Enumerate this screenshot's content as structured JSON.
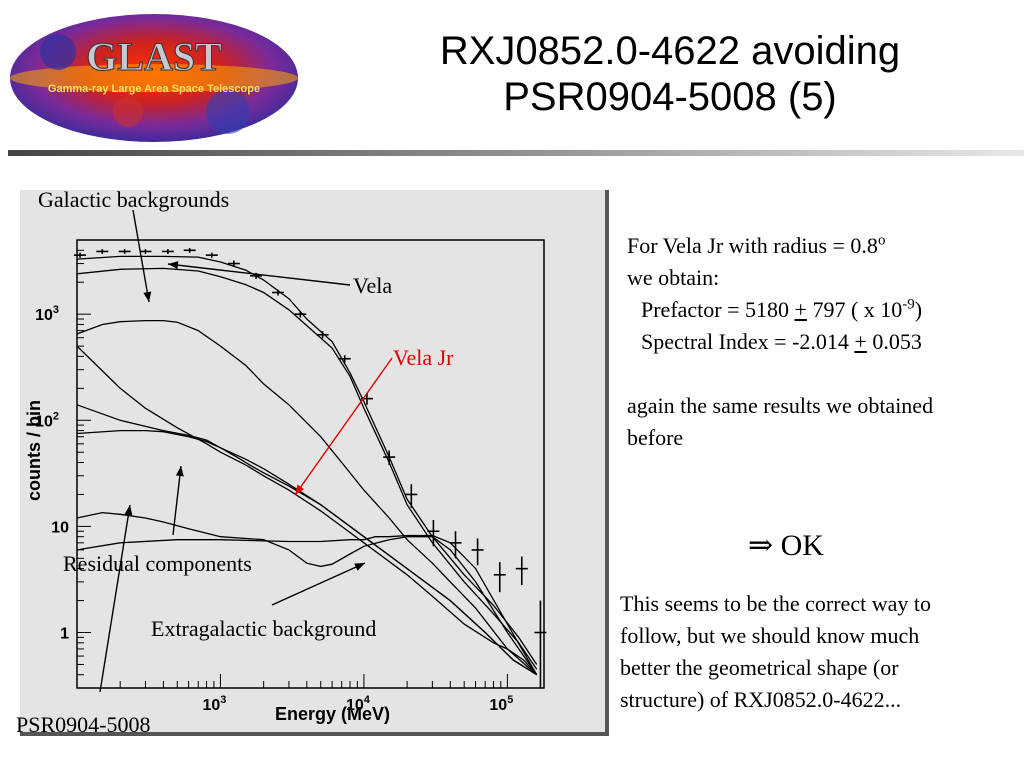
{
  "logo": {
    "name": "GLAST",
    "subtitle": "Gamma-ray Large Area Space Telescope"
  },
  "title": {
    "line1": "RXJ0852.0-4622 avoiding",
    "line2": "PSR0904-5008 (5)"
  },
  "annotations": {
    "galactic": "Galactic backgrounds",
    "vela": "Vela",
    "vela_jr": "Vela Jr",
    "residual": "Residual components",
    "extragalactic": "Extragalactic background",
    "psr": "PSR0904-5008"
  },
  "info": {
    "line1": "For Vela Jr with radius = 0.8",
    "line1_sup": "o",
    "line2": "we obtain:",
    "prefactor_label": "Prefactor = 5180 ",
    "prefactor_pm": "+",
    "prefactor_rest": " 797 ( x 10",
    "prefactor_exp": "-9",
    "prefactor_close": ")",
    "index_label": "Spectral Index = -2.014 ",
    "index_pm": "+",
    "index_rest": " 0.053",
    "again1": "again the same results we obtained",
    "again2": "before"
  },
  "ok": {
    "arrow": "⇒",
    "text": "OK"
  },
  "conclusion": {
    "line1": "This seems to be the correct way to",
    "line2": "follow, but we should know much",
    "line3": "better the geometrical shape (or",
    "line4": "structure) of RXJ0852.0-4622..."
  },
  "colors": {
    "accent_red": "#e00000",
    "panel_bg": "#e4e4e4"
  },
  "chart_data": {
    "type": "line",
    "xlabel": "Energy (MeV)",
    "ylabel": "counts / bin",
    "xscale": "log",
    "yscale": "log",
    "xlim": [
      100,
      180000
    ],
    "ylim": [
      0.3,
      5000
    ],
    "x_ticks": [
      {
        "value": 1000,
        "base": "10",
        "exp": "3"
      },
      {
        "value": 10000,
        "base": "10",
        "exp": "4"
      },
      {
        "value": 100000,
        "base": "10",
        "exp": "5"
      }
    ],
    "y_ticks": [
      {
        "value": 1,
        "label": "1"
      },
      {
        "value": 10,
        "label": "10"
      },
      {
        "value": 100,
        "base": "10",
        "exp": "2"
      },
      {
        "value": 1000,
        "base": "10",
        "exp": "3"
      }
    ],
    "points": {
      "x": [
        105,
        150,
        215,
        300,
        430,
        610,
        870,
        1240,
        1770,
        2520,
        3600,
        5150,
        7350,
        10500,
        15000,
        21400,
        30500,
        43500,
        62000,
        88500,
        126000,
        170000
      ],
      "y": [
        3600,
        3900,
        3900,
        3900,
        3900,
        4000,
        3600,
        3000,
        2300,
        1600,
        1000,
        640,
        380,
        160,
        45,
        20,
        9,
        7,
        6,
        3.5,
        4,
        1
      ],
      "err_lo": [
        3400,
        3700,
        3700,
        3700,
        3700,
        3800,
        3400,
        2800,
        2150,
        1500,
        930,
        590,
        350,
        140,
        38,
        15,
        6.5,
        5,
        4.3,
        2.4,
        2.8,
        0.3
      ],
      "err_hi": [
        3800,
        4100,
        4100,
        4100,
        4100,
        4200,
        3800,
        3200,
        2450,
        1700,
        1070,
        690,
        410,
        180,
        52,
        25,
        11.5,
        9,
        7.7,
        4.6,
        5.2,
        2
      ]
    },
    "series": [
      {
        "x": [
          100,
          200,
          400,
          700,
          1000,
          1500,
          2000,
          3000,
          4000,
          6000,
          8000,
          10000,
          15000,
          20000,
          30000,
          50000,
          80000,
          120000,
          160000
        ],
        "y": [
          3300,
          3500,
          3500,
          3450,
          3100,
          2600,
          2100,
          1400,
          900,
          550,
          280,
          150,
          45,
          18,
          8,
          3.5,
          1.8,
          0.9,
          0.5
        ]
      },
      {
        "x": [
          100,
          200,
          400,
          700,
          1000,
          1500,
          2000,
          3000,
          4000,
          6000,
          8000,
          10000,
          15000,
          20000,
          30000,
          50000,
          80000,
          120000,
          160000
        ],
        "y": [
          2400,
          2650,
          2700,
          2550,
          2250,
          1900,
          1600,
          1100,
          780,
          480,
          260,
          130,
          40,
          16,
          7,
          3,
          1.5,
          0.8,
          0.45
        ]
      },
      {
        "x": [
          100,
          150,
          200,
          300,
          400,
          500,
          700,
          1000,
          1500,
          2000,
          3000,
          5000,
          7000,
          10000,
          15000,
          20000,
          30000,
          40000,
          60000,
          100000,
          160000
        ],
        "y": [
          650,
          800,
          850,
          870,
          870,
          840,
          700,
          500,
          330,
          220,
          140,
          70,
          40,
          22,
          12,
          7.5,
          4.5,
          3,
          1.7,
          0.7,
          0.4
        ]
      },
      {
        "x": [
          100,
          200,
          300,
          500,
          800,
          1000,
          1500,
          2000,
          3000,
          5000,
          7000,
          10000,
          20000,
          30000,
          50000,
          80000,
          100000,
          130000,
          160000
        ],
        "y": [
          500,
          200,
          130,
          85,
          60,
          50,
          38,
          30,
          22,
          14,
          10,
          7,
          3.5,
          2.2,
          1.2,
          0.8,
          0.7,
          0.55,
          0.4
        ]
      },
      {
        "x": [
          100,
          200,
          400,
          600,
          800,
          1000,
          1300,
          1600,
          2000,
          3000,
          5000,
          10000,
          20000,
          40000,
          70000,
          110000,
          160000
        ],
        "y": [
          140,
          100,
          80,
          72,
          65,
          55,
          45,
          38,
          32,
          24,
          16,
          8,
          4,
          2,
          1,
          0.55,
          0.4
        ]
      },
      {
        "x": [
          100,
          200,
          300,
          400,
          600,
          800,
          1000,
          1500,
          2000,
          3000,
          5000,
          10000,
          20000,
          40000,
          70000,
          110000,
          160000
        ],
        "y": [
          75,
          80,
          80,
          78,
          70,
          63,
          55,
          43,
          35,
          25,
          16,
          8,
          4,
          2,
          1,
          0.55,
          0.4
        ]
      },
      {
        "x": [
          100,
          150,
          200,
          300,
          400,
          600,
          1000,
          2000,
          3000,
          4000,
          5000,
          6000,
          8000,
          10000,
          15000,
          20000,
          30000,
          40000,
          60000,
          100000,
          160000
        ],
        "y": [
          12,
          13.5,
          13,
          12,
          11,
          9.5,
          8,
          7.5,
          6,
          4.5,
          4.2,
          4.4,
          5.5,
          6.5,
          7.5,
          8,
          8,
          6,
          3,
          1,
          0.4
        ]
      },
      {
        "x": [
          100,
          200,
          500,
          1000,
          2000,
          3000,
          5000,
          8000,
          10000,
          12000,
          15000,
          20000,
          30000,
          40000,
          60000,
          100000,
          160000
        ],
        "y": [
          6,
          7,
          7.5,
          7.5,
          7.3,
          7.2,
          7.2,
          7.5,
          7.5,
          8,
          8,
          8.2,
          8.2,
          7,
          4,
          1.2,
          0.4
        ]
      }
    ]
  }
}
